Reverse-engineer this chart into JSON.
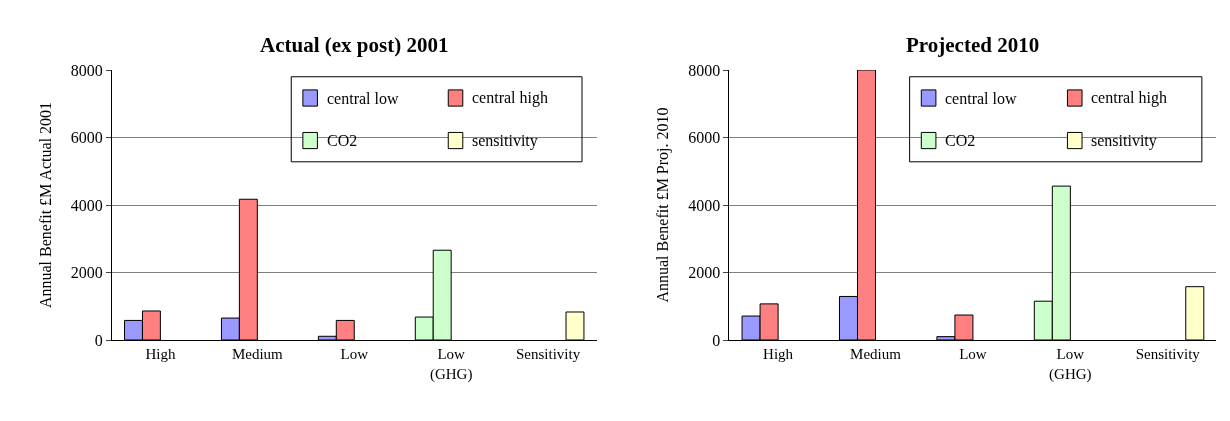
{
  "chart_data": [
    {
      "type": "bar",
      "title": "Actual (ex post) 2001",
      "ylabel": "Annual Benefit £M Actual 2001",
      "categories": [
        "High",
        "Medium",
        "Low",
        "Low\n(GHG)",
        "Sensitivity"
      ],
      "ylim": [
        0,
        8000
      ],
      "yticks": [
        0,
        2000,
        4000,
        6000,
        8000
      ],
      "grid": "y",
      "legend": "top right",
      "series": [
        {
          "name": "central low",
          "color": "#9999ff",
          "colors": [
            "#9999ff",
            "#9999ff",
            "#9999ff",
            "#ccffcc",
            "#9999ff"
          ],
          "values": [
            580,
            650,
            110,
            680,
            null
          ]
        },
        {
          "name": "central high",
          "color": "#ff8080",
          "colors": [
            "#ff8080",
            "#ff8080",
            "#ff8080",
            "#ccffcc",
            "#ff8080"
          ],
          "values": [
            860,
            4170,
            580,
            2660,
            null
          ]
        },
        {
          "name": "CO2",
          "color": "#ccffcc",
          "values": [
            null,
            null,
            null,
            null,
            null
          ]
        },
        {
          "name": "sensitivity",
          "color": "#ffffcc",
          "values": [
            null,
            null,
            null,
            null,
            830
          ]
        }
      ]
    },
    {
      "type": "bar",
      "title": "Projected 2010",
      "ylabel": "Annual Benefit £M Proj. 2010",
      "categories": [
        "High",
        "Medium",
        "Low",
        "Low\n(GHG)",
        "Sensitivity"
      ],
      "ylim": [
        0,
        8000
      ],
      "yticks": [
        0,
        2000,
        4000,
        6000,
        8000
      ],
      "grid": "y",
      "legend": "top right",
      "series": [
        {
          "name": "central low",
          "color": "#9999ff",
          "colors": [
            "#9999ff",
            "#9999ff",
            "#9999ff",
            "#ccffcc",
            "#9999ff"
          ],
          "values": [
            710,
            1290,
            100,
            1150,
            null
          ]
        },
        {
          "name": "central high",
          "color": "#ff8080",
          "colors": [
            "#ff8080",
            "#ff8080",
            "#ff8080",
            "#ccffcc",
            "#ff8080"
          ],
          "values": [
            1070,
            8000,
            740,
            4560,
            null
          ]
        },
        {
          "name": "CO2",
          "color": "#ccffcc",
          "values": [
            null,
            null,
            null,
            null,
            null
          ]
        },
        {
          "name": "sensitivity",
          "color": "#ffffcc",
          "values": [
            null,
            null,
            null,
            null,
            1580
          ]
        }
      ]
    }
  ]
}
